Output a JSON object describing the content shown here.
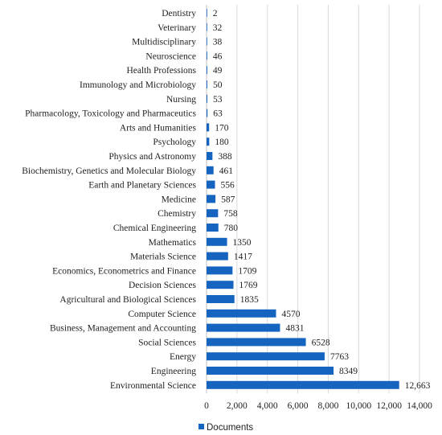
{
  "chart_data": {
    "type": "bar",
    "orientation": "horizontal",
    "categories": [
      "Environmental Science",
      "Engineering",
      "Energy",
      "Social Sciences",
      "Business, Management and Accounting",
      "Computer Science",
      "Agricultural and Biological Sciences",
      "Decision Sciences",
      "Economics, Econometrics and Finance",
      "Materials Science",
      "Mathematics",
      "Chemical Engineering",
      "Chemistry",
      "Medicine",
      "Earth and Planetary Sciences",
      "Biochemistry, Genetics and Molecular Biology",
      "Physics and Astronomy",
      "Psychology",
      "Arts and Humanities",
      "Pharmacology, Toxicology and Pharmaceutics",
      "Nursing",
      "Immunology and Microbiology",
      "Health Professions",
      "Neuroscience",
      "Multidisciplinary",
      "Veterinary",
      "Dentistry"
    ],
    "series": [
      {
        "name": "Documents",
        "values": [
          12663,
          8349,
          7763,
          6528,
          4831,
          4570,
          1835,
          1769,
          1709,
          1417,
          1350,
          780,
          758,
          587,
          556,
          461,
          388,
          180,
          170,
          63,
          53,
          50,
          49,
          46,
          38,
          32,
          2
        ],
        "value_labels": [
          "12,663",
          "8349",
          "7763",
          "6528",
          "4831",
          "4570",
          "1835",
          "1769",
          "1709",
          "1417",
          "1350",
          "780",
          "758",
          "587",
          "556",
          "461",
          "388",
          "180",
          "170",
          "63",
          "53",
          "50",
          "49",
          "46",
          "38",
          "32",
          "2"
        ]
      }
    ],
    "xlim": [
      0,
      14000
    ],
    "x_ticks": [
      "0",
      "2,000",
      "4,000",
      "6,000",
      "8,000",
      "10,000",
      "12,000",
      "14,000"
    ],
    "x_tick_values": [
      0,
      2000,
      4000,
      6000,
      8000,
      10000,
      12000,
      14000
    ],
    "grid": true,
    "legend_position": "bottom",
    "bar_color": "#1565C0"
  }
}
